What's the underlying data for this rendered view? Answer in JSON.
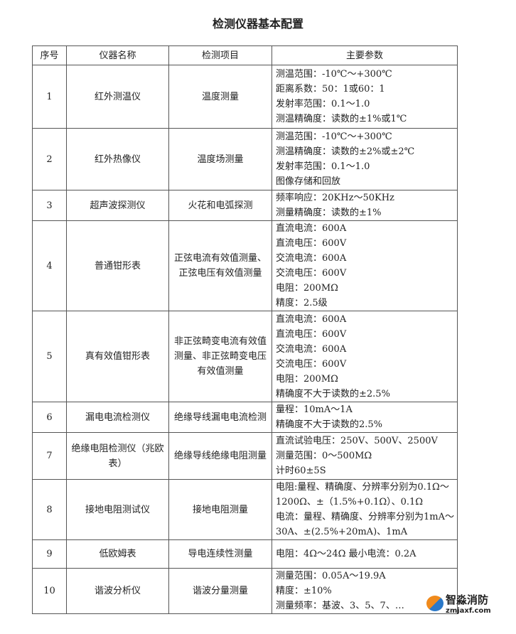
{
  "title": "检测仪器基本配置",
  "headers": [
    "序号",
    "仪器名称",
    "检测项目",
    "主要参数"
  ],
  "rows": [
    {
      "no": "1",
      "name": "红外测温仪",
      "item": "温度测量",
      "params": [
        "测温范围：-10℃～+300℃",
        "距离系数：50：1或60：1",
        "发射率范围：0.1～1.0",
        "测温精确度：读数的±1%或1℃"
      ]
    },
    {
      "no": "2",
      "name": "红外热像仪",
      "item": "温度场测量",
      "params": [
        "测温范围：-10℃～+300℃",
        "测温精确度：读数的±2%或±2℃",
        "发射率范围：0.1～1.0",
        "图像存储和回放"
      ]
    },
    {
      "no": "3",
      "name": "超声波探测仪",
      "item": "火花和电弧探测",
      "params": [
        "频率响应：20KHz～50KHz",
        "测量精确度：读数的±1%"
      ]
    },
    {
      "no": "4",
      "name": "普通钳形表",
      "item": "正弦电流有效值测量、正弦电压有效值测量",
      "params": [
        "直流电流：600A",
        "直流电压：600V",
        "交流电流：600A",
        "交流电压：600V",
        "电阻：200MΩ",
        "精度：2.5级"
      ]
    },
    {
      "no": "5",
      "name": "真有效值钳形表",
      "item": "非正弦畸变电流有效值测量、非正弦畸变电压有效值测量",
      "params": [
        "直流电流：600A",
        "直流电压：600V",
        "交流电流：600A",
        "交流电压：600V",
        "电阻：200MΩ",
        "精确度不大于读数的±2.5%"
      ]
    },
    {
      "no": "6",
      "name": "漏电电流检测仪",
      "item": "绝缘导线漏电电流检测",
      "params": [
        "量程：10mA～1A",
        "精确度不大于读数的2.5%"
      ]
    },
    {
      "no": "7",
      "name": "绝缘电阻检测仪（兆欧表）",
      "item": "绝缘导线绝缘电阻测量",
      "params": [
        "直流试验电压：250V、500V、2500V",
        "测量范围：0～500MΩ",
        "计时60±5S"
      ]
    },
    {
      "no": "8",
      "name": "接地电阻测试仪",
      "item": "接地电阻测量",
      "params": [
        "电阻:量程、精确度、分辨率分别为0.1Ω～",
        "1200Ω、±（1.5%+0.1Ω）、0.1Ω",
        "电流：量程、精确度、分辨率分别为1mA～",
        "30A、±(2.5%+20mA)、1mA"
      ]
    },
    {
      "no": "9",
      "name": "低欧姆表",
      "item": "导电连续性测量",
      "params": [
        "电阻：4Ω～24Ω  最小电流：0.2A"
      ]
    },
    {
      "no": "10",
      "name": "谐波分析仪",
      "item": "谐波分量测量",
      "params": [
        "测量范围：0.05A～19.9A",
        "精度：±10%",
        "测量频率：基波、3、5、7、…"
      ]
    }
  ],
  "watermark": {
    "name": "智淼消防",
    "url": "zmjaxf.com"
  }
}
